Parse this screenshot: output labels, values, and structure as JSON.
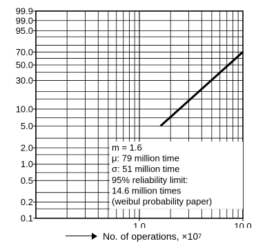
{
  "chart_data": {
    "type": "line",
    "title": "",
    "xlabel_text": "No. of operations, ×10",
    "xlabel_exp": "7",
    "ylabel": "",
    "xscale": "log",
    "yscale": "weibull",
    "xlim": [
      0.1,
      10.0
    ],
    "ylim": [
      0.1,
      99.9
    ],
    "grid": true,
    "x_ticks": [
      {
        "value": 1.0,
        "label": "1.0"
      },
      {
        "value": 10.0,
        "label": "10.0"
      }
    ],
    "y_ticks": [
      {
        "value": 99.9,
        "label": "99.9"
      },
      {
        "value": 99.0,
        "label": "99.0"
      },
      {
        "value": 95.0,
        "label": "95.0"
      },
      {
        "value": 70.0,
        "label": "70.0"
      },
      {
        "value": 50.0,
        "label": "50.0"
      },
      {
        "value": 30.0,
        "label": "30.0"
      },
      {
        "value": 10.0,
        "label": "10.0"
      },
      {
        "value": 5.0,
        "label": "5.0"
      },
      {
        "value": 2.0,
        "label": "2.0"
      },
      {
        "value": 1.0,
        "label": "1.0"
      },
      {
        "value": 0.5,
        "label": "0.5"
      },
      {
        "value": 0.2,
        "label": "0.2"
      },
      {
        "value": 0.1,
        "label": "0.1"
      }
    ],
    "y_gridlines": [
      99.9,
      99.0,
      95.0,
      90.0,
      80.0,
      70.0,
      60.0,
      50.0,
      40.0,
      30.0,
      20.0,
      15.0,
      10.0,
      7.0,
      5.0,
      3.0,
      2.0,
      1.5,
      1.0,
      0.7,
      0.5,
      0.3,
      0.2,
      0.15,
      0.1
    ],
    "series": [
      {
        "x": [
          1.6,
          10.0
        ],
        "y": [
          5.0,
          70.0
        ],
        "color": "#000000"
      }
    ],
    "annotations": [
      "m = 1.6",
      "μ: 79 million time",
      "σ: 51 million time",
      "95% reliability limit:",
      "14.6 million times",
      "(weibul probability paper)"
    ]
  }
}
